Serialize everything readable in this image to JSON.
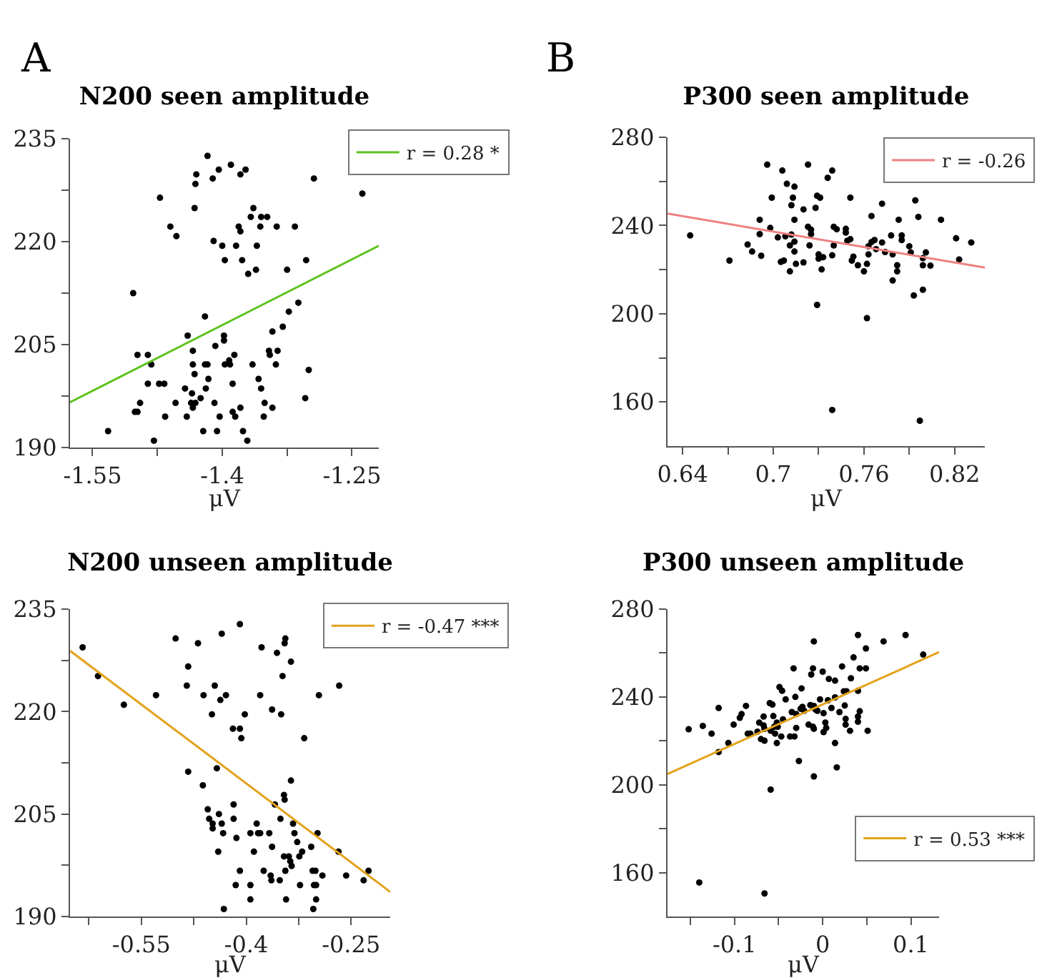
{
  "chart_data": [
    {
      "type": "scatter",
      "title": "N200 seen amplitude",
      "xlabel": "μV",
      "annotations": [
        "A"
      ],
      "marker": "circle",
      "legend": "top right",
      "grid": false,
      "xlim": [
        -1.576,
        -1.219
      ],
      "ylim": [
        190,
        235
      ],
      "xticks": [
        -1.55,
        {
          "value": -1.475,
          "label": null
        },
        -1.4,
        {
          "value": -1.325,
          "label": null
        },
        -1.25
      ],
      "yticks": [
        190,
        {
          "value": 197.5,
          "label": null
        },
        205,
        {
          "value": 212.5,
          "label": null
        },
        220,
        {
          "value": 227.5,
          "label": null
        },
        235
      ],
      "series": [
        {
          "type": "scatter",
          "color": "#000000",
          "x": [
            -1.417,
            -1.39,
            -1.404,
            -1.373,
            -1.43,
            -1.411,
            -1.379,
            -1.431,
            -1.294,
            -1.238,
            -1.472,
            -1.432,
            -1.364,
            -1.367,
            -1.355,
            -1.348,
            -1.46,
            -1.453,
            -1.381,
            -1.379,
            -1.356,
            -1.337,
            -1.316,
            -1.41,
            -1.4,
            -1.384,
            -1.36,
            -1.397,
            -1.377,
            -1.303,
            -1.361,
            -1.325,
            -1.37,
            -1.503,
            -1.312,
            -1.323,
            -1.42,
            -1.33,
            -1.342,
            -1.44,
            -1.398,
            -1.398,
            -1.408,
            -1.434,
            -1.346,
            -1.345,
            -1.336,
            -1.498,
            -1.486,
            -1.386,
            -1.482,
            -1.434,
            -1.42,
            -1.417,
            -1.397,
            -1.392,
            -1.391,
            -1.365,
            -1.338,
            -1.3,
            -1.432,
            -1.358,
            -1.416,
            -1.486,
            -1.473,
            -1.467,
            -1.388,
            -1.355,
            -1.443,
            -1.435,
            -1.419,
            -1.425,
            -1.304,
            -1.495,
            -1.454,
            -1.436,
            -1.431,
            -1.409,
            -1.351,
            -1.434,
            -1.379,
            -1.342,
            -1.501,
            -1.498,
            -1.388,
            -1.466,
            -1.441,
            -1.403,
            -1.385,
            -1.352,
            -1.532,
            -1.422,
            -1.406,
            -1.376,
            -1.479,
            -1.371
          ],
          "values": [
            232.5,
            231.2,
            230.5,
            230.5,
            229.8,
            229.2,
            229.8,
            228.4,
            229.2,
            227.0,
            226.4,
            224.9,
            224.9,
            223.6,
            223.6,
            223.6,
            222.2,
            220.8,
            222.2,
            221.5,
            222.2,
            222.2,
            222.2,
            220.1,
            219.4,
            219.4,
            219.4,
            217.3,
            217.3,
            217.3,
            215.9,
            215.9,
            215.3,
            212.5,
            211.1,
            209.8,
            209.1,
            207.6,
            206.9,
            206.3,
            206.3,
            205.6,
            204.8,
            204.1,
            204.1,
            203.5,
            204.1,
            203.5,
            203.5,
            203.5,
            202.1,
            202.1,
            202.1,
            202.1,
            202.1,
            202.7,
            202.1,
            202.1,
            202.1,
            201.3,
            200.7,
            200.0,
            200.0,
            199.3,
            199.3,
            199.3,
            199.3,
            198.6,
            198.6,
            197.9,
            198.6,
            197.2,
            197.2,
            196.5,
            196.5,
            196.5,
            196.5,
            196.5,
            196.5,
            195.8,
            195.8,
            195.8,
            195.2,
            195.2,
            195.2,
            194.5,
            194.5,
            194.5,
            194.5,
            194.5,
            192.4,
            192.4,
            192.4,
            192.4,
            191.0,
            191.0
          ]
        },
        {
          "type": "line",
          "name": "r = 0.28 *",
          "marker": "none",
          "color": "#5dc21e",
          "x": [
            -1.576,
            -1.219
          ],
          "values": [
            196.6,
            219.4
          ]
        }
      ]
    },
    {
      "type": "scatter",
      "title": "P300 seen amplitude",
      "xlabel": "μV",
      "annotations": [
        "B"
      ],
      "marker": "circle",
      "legend": "top right",
      "grid": false,
      "xlim": [
        0.63,
        0.84
      ],
      "ylim": [
        140,
        280
      ],
      "xticks": [
        0.64,
        {
          "value": 0.67,
          "label": null
        },
        0.7,
        {
          "value": 0.73,
          "label": null
        },
        0.76,
        {
          "value": 0.79,
          "label": null
        },
        0.82
      ],
      "yticks": [
        160,
        {
          "value": 180,
          "label": null
        },
        200,
        {
          "value": 220,
          "label": null
        },
        240,
        {
          "value": 260,
          "label": null
        },
        280
      ],
      "series": [
        {
          "type": "scatter",
          "color": "#000000",
          "x": [
            0.696,
            0.723,
            0.706,
            0.739,
            0.736,
            0.709,
            0.714,
            0.699,
            0.713,
            0.729,
            0.731,
            0.751,
            0.794,
            0.712,
            0.772,
            0.72,
            0.728,
            0.691,
            0.714,
            0.765,
            0.783,
            0.796,
            0.811,
            0.698,
            0.723,
            0.725,
            0.74,
            0.742,
            0.748,
            0.691,
            0.703,
            0.708,
            0.712,
            0.725,
            0.748,
            0.645,
            0.778,
            0.785,
            0.821,
            0.831,
            0.714,
            0.749,
            0.751,
            0.765,
            0.767,
            0.772,
            0.785,
            0.683,
            0.711,
            0.724,
            0.74,
            0.763,
            0.79,
            0.686,
            0.714,
            0.768,
            0.774,
            0.779,
            0.791,
            0.801,
            0.692,
            0.73,
            0.739,
            0.753,
            0.763,
            0.671,
            0.705,
            0.707,
            0.72,
            0.73,
            0.733,
            0.752,
            0.762,
            0.799,
            0.823,
            0.715,
            0.756,
            0.782,
            0.799,
            0.804,
            0.732,
            0.711,
            0.76,
            0.782,
            0.779,
            0.729,
            0.793,
            0.799,
            0.762,
            0.739,
            0.797
          ],
          "values": [
            267.6,
            267.6,
            264.9,
            264.9,
            261.6,
            258.9,
            257.6,
            252.6,
            252.6,
            253.5,
            252.6,
            252.6,
            251.4,
            249.2,
            249.9,
            247.3,
            248.0,
            242.6,
            242.6,
            244.3,
            242.6,
            243.9,
            242.6,
            238.9,
            239.4,
            238.1,
            239.4,
            238.3,
            238.5,
            236.1,
            234.6,
            235.1,
            235.9,
            236.1,
            236.8,
            235.5,
            235.5,
            235.5,
            234.2,
            232.3,
            232.7,
            233.1,
            233.8,
            232.5,
            233.4,
            232.3,
            233.4,
            231.4,
            231.0,
            231.0,
            231.0,
            230.6,
            230.6,
            228.2,
            228.2,
            229.3,
            228.0,
            226.9,
            227.8,
            227.8,
            226.3,
            226.9,
            226.5,
            225.9,
            226.9,
            224.1,
            223.5,
            224.1,
            223.3,
            225.0,
            225.6,
            224.1,
            222.6,
            225.2,
            224.6,
            222.6,
            222.0,
            222.0,
            222.0,
            221.8,
            220.1,
            219.2,
            219.2,
            219.2,
            215.1,
            204.0,
            208.3,
            210.9,
            198.0,
            156.4,
            151.5
          ]
        },
        {
          "type": "line",
          "name": "r = -0.26",
          "marker": "none",
          "color": "#f08080",
          "x": [
            0.63,
            0.84
          ],
          "values": [
            245.4,
            220.9
          ]
        }
      ]
    },
    {
      "type": "scatter",
      "title": "N200 unseen amplitude",
      "xlabel": "μV",
      "marker": "circle",
      "legend": "top right",
      "grid": false,
      "xlim": [
        -0.652,
        -0.194
      ],
      "ylim": [
        190,
        235
      ],
      "xticks": [
        {
          "value": -0.625,
          "label": null
        },
        -0.55,
        {
          "value": -0.475,
          "label": null
        },
        -0.4,
        {
          "value": -0.325,
          "label": null
        },
        -0.25
      ],
      "yticks": [
        190,
        {
          "value": 197.5,
          "label": null
        },
        205,
        {
          "value": 212.5,
          "label": null
        },
        220,
        {
          "value": 227.5,
          "label": null
        },
        235
      ],
      "series": [
        {
          "type": "scatter",
          "color": "#000000",
          "x": [
            -0.634,
            -0.612,
            -0.575,
            -0.529,
            -0.501,
            -0.483,
            -0.485,
            -0.469,
            -0.461,
            -0.449,
            -0.445,
            -0.437,
            -0.435,
            -0.429,
            -0.409,
            -0.419,
            -0.409,
            -0.407,
            -0.402,
            -0.38,
            -0.378,
            -0.363,
            -0.356,
            -0.35,
            -0.348,
            -0.345,
            -0.344,
            -0.336,
            -0.317,
            -0.296,
            -0.267,
            -0.483,
            -0.462,
            -0.442,
            -0.455,
            -0.453,
            -0.448,
            -0.448,
            -0.439,
            -0.435,
            -0.433,
            -0.44,
            -0.418,
            -0.418,
            -0.414,
            -0.409,
            -0.415,
            -0.394,
            -0.389,
            -0.394,
            -0.394,
            -0.385,
            -0.383,
            -0.38,
            -0.432,
            -0.375,
            -0.367,
            -0.365,
            -0.364,
            -0.363,
            -0.359,
            -0.351,
            -0.352,
            -0.346,
            -0.345,
            -0.346,
            -0.344,
            -0.343,
            -0.339,
            -0.337,
            -0.335,
            -0.336,
            -0.333,
            -0.331,
            -0.327,
            -0.324,
            -0.323,
            -0.32,
            -0.307,
            -0.305,
            -0.301,
            -0.303,
            -0.3,
            -0.3,
            -0.304,
            -0.298,
            -0.291,
            -0.268,
            -0.257,
            -0.232,
            -0.225
          ],
          "values": [
            229.4,
            225.2,
            221.0,
            222.4,
            230.7,
            226.6,
            223.8,
            230.0,
            222.4,
            219.6,
            223.8,
            221.7,
            231.4,
            222.4,
            232.8,
            217.5,
            217.5,
            216.1,
            219.6,
            222.4,
            229.4,
            220.3,
            228.6,
            219.6,
            225.2,
            230.0,
            230.7,
            227.3,
            216.1,
            222.4,
            223.8,
            211.2,
            209.2,
            211.7,
            205.7,
            204.3,
            203.6,
            202.9,
            205.0,
            203.6,
            202.2,
            199.5,
            206.4,
            204.3,
            201.5,
            196.7,
            194.6,
            202.2,
            199.5,
            194.6,
            192.5,
            203.6,
            202.2,
            202.2,
            191.1,
            196.7,
            202.2,
            196.0,
            195.3,
            200.2,
            206.4,
            204.3,
            195.3,
            207.8,
            207.1,
            198.8,
            196.7,
            192.5,
            198.8,
            198.1,
            197.4,
            209.9,
            203.6,
            202.2,
            200.9,
            198.8,
            194.6,
            199.5,
            200.2,
            196.7,
            196.7,
            194.6,
            194.6,
            192.5,
            191.1,
            202.2,
            196.0,
            199.5,
            196.0,
            195.3,
            196.7
          ]
        },
        {
          "type": "line",
          "name": "r = -0.47 ***",
          "marker": "none",
          "color": "#e3a21a",
          "x": [
            -0.652,
            -0.194
          ],
          "values": [
            228.9,
            193.6
          ]
        }
      ]
    },
    {
      "type": "scatter",
      "title": "P300 unseen amplitude",
      "xlabel": "μV",
      "marker": "circle",
      "legend": "bottom right",
      "grid": false,
      "xlim": [
        -0.176,
        0.132
      ],
      "ylim": [
        140,
        280
      ],
      "xticks": [
        {
          "value": -0.15,
          "label": null
        },
        -0.1,
        {
          "value": -0.05,
          "label": null
        },
        0,
        {
          "value": 0.05,
          "label": null
        },
        0.1
      ],
      "yticks": [
        160,
        {
          "value": 180,
          "label": null
        },
        200,
        {
          "value": 220,
          "label": null
        },
        240,
        {
          "value": 260,
          "label": null
        },
        280
      ],
      "series": [
        {
          "type": "scatter",
          "color": "#000000",
          "x": [
            -0.152,
            -0.136,
            -0.126,
            -0.118,
            -0.118,
            -0.107,
            -0.101,
            -0.094,
            -0.092,
            -0.087,
            -0.085,
            -0.082,
            -0.074,
            -0.072,
            -0.07,
            -0.067,
            -0.067,
            -0.066,
            -0.066,
            -0.06,
            -0.059,
            -0.057,
            -0.056,
            -0.055,
            -0.054,
            -0.052,
            -0.052,
            -0.051,
            -0.049,
            -0.046,
            -0.045,
            -0.047,
            -0.042,
            -0.037,
            -0.035,
            -0.033,
            -0.032,
            -0.031,
            -0.03,
            -0.03,
            -0.027,
            -0.025,
            -0.024,
            -0.023,
            -0.021,
            -0.016,
            -0.014,
            -0.013,
            -0.011,
            -0.011,
            -0.01,
            -0.01,
            -0.01,
            -0.008,
            -0.006,
            -0.01,
            -0.003,
            0,
            0.001,
            0.001,
            0.003,
            0.004,
            0.006,
            0.007,
            0.01,
            0.014,
            0.014,
            0.014,
            0.016,
            0.019,
            0.022,
            0.024,
            0.025,
            0.026,
            0.026,
            0.027,
            0.031,
            0.032,
            0.035,
            0.04,
            0.04,
            0.04,
            0.04,
            0.042,
            0.042,
            0.049,
            0.049,
            0.051,
            0.069,
            0.094,
            0.114,
            -0.14,
            -0.066,
            -0.059
          ],
          "values": [
            225.3,
            226.8,
            223.3,
            235.0,
            214.9,
            219.0,
            227.4,
            230.5,
            232.2,
            235.9,
            223.3,
            223.3,
            224.2,
            228.3,
            220.8,
            231.1,
            227.0,
            225.5,
            220.1,
            237.2,
            224.6,
            236.5,
            231.3,
            226.4,
            223.3,
            228.3,
            219.0,
            226.4,
            244.5,
            242.8,
            229.8,
            222.0,
            238.9,
            222.0,
            233.1,
            253.0,
            222.0,
            240.0,
            232.2,
            225.9,
            210.8,
            234.6,
            243.9,
            235.5,
            233.7,
            227.4,
            236.3,
            250.2,
            253.0,
            226.4,
            225.5,
            265.3,
            235.9,
            234.2,
            233.7,
            203.8,
            238.9,
            251.5,
            232.6,
            224.0,
            228.3,
            225.9,
            238.5,
            248.2,
            235.0,
            239.8,
            247.4,
            219.0,
            207.9,
            233.1,
            253.9,
            242.6,
            236.1,
            230.0,
            227.4,
            242.6,
            224.6,
            248.5,
            258.0,
            268.2,
            242.8,
            231.1,
            228.7,
            253.0,
            233.5,
            262.1,
            253.0,
            224.6,
            265.3,
            268.2,
            259.3,
            155.5,
            150.5,
            197.8
          ]
        },
        {
          "type": "line",
          "name": "r = 0.53 ***",
          "marker": "none",
          "color": "#e3a21a",
          "x": [
            -0.176,
            0.132
          ],
          "values": [
            204.9,
            260.4
          ]
        }
      ]
    }
  ]
}
